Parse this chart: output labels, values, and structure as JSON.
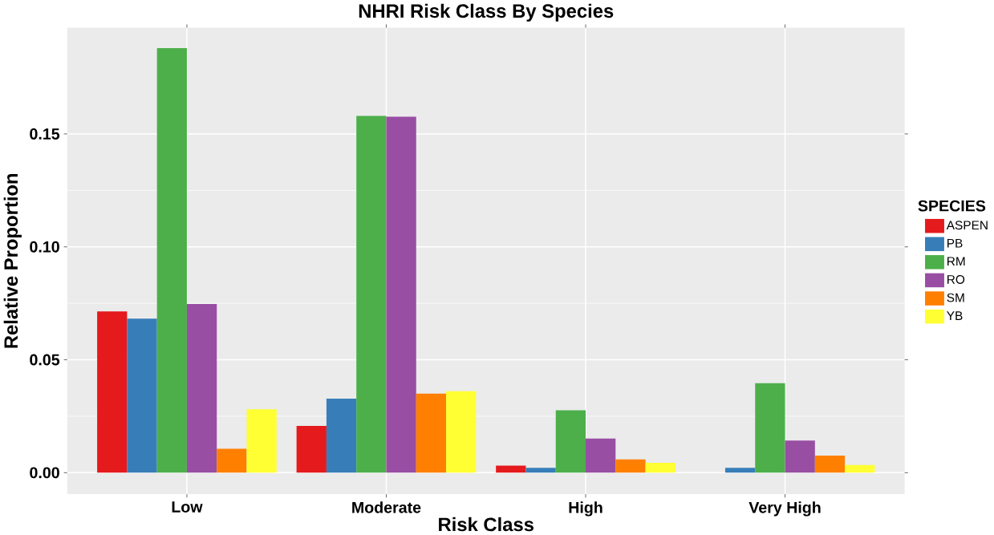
{
  "chart_data": {
    "type": "bar",
    "title": "NHRI Risk Class By Species",
    "xlabel": "Risk Class",
    "ylabel": "Relative Proportion",
    "legend_title": "SPECIES",
    "categories": [
      "Low",
      "Moderate",
      "High",
      "Very High"
    ],
    "series": [
      {
        "name": "ASPEN",
        "color": "#e41a1c",
        "values": [
          0.0714,
          0.0207,
          0.0031,
          null
        ]
      },
      {
        "name": "PB",
        "color": "#377eb8",
        "values": [
          0.0682,
          0.0328,
          0.0022,
          0.0022
        ]
      },
      {
        "name": "RM",
        "color": "#4daf4a",
        "values": [
          0.188,
          0.158,
          0.0276,
          0.0396
        ]
      },
      {
        "name": "RO",
        "color": "#984ea3",
        "values": [
          0.0747,
          0.1576,
          0.0151,
          0.0142
        ]
      },
      {
        "name": "SM",
        "color": "#ff7f00",
        "values": [
          0.0106,
          0.035,
          0.0059,
          0.0076
        ]
      },
      {
        "name": "YB",
        "color": "#ffff33",
        "values": [
          0.0281,
          0.0361,
          0.0044,
          0.0034
        ]
      }
    ],
    "ylim": [
      -0.0095,
      0.197
    ],
    "yticks": [
      {
        "value": 0,
        "label": "0.00"
      },
      {
        "value": 0.05,
        "label": "0.05"
      },
      {
        "value": 0.1,
        "label": "0.10"
      },
      {
        "value": 0.15,
        "label": "0.15"
      }
    ],
    "grid": true,
    "legend": "right"
  }
}
